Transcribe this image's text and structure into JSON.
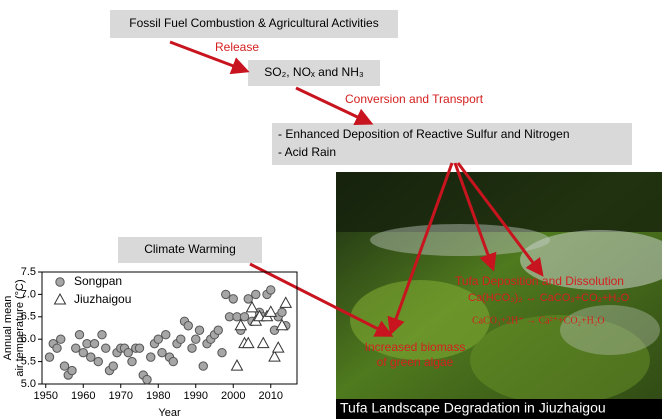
{
  "source_box": "Fossil Fuel Combustion & Agricultural Activities",
  "emission_box": "SO₂, NOₓ and NH₃",
  "deposition_box": [
    "- Enhanced Deposition of Reactive Sulfur and Nitrogen",
    "- Acid Rain"
  ],
  "climate_box": "Climate Warming",
  "arrow_labels": [
    "Release",
    "Conversion and Transport"
  ],
  "photo": {
    "labels": [
      "Tufa Deposition and Dissolution",
      "Ca(HCO₃)₂ ↔ CaCO₃+CO₂+H₂O",
      "CaCO₃+2H⁺ → Ca²⁺+CO₂+H₂O",
      "Increased biomass",
      "of green algae"
    ],
    "caption": "Tufa Landscape Degradation in Jiuzhaigou"
  },
  "chart_data": {
    "type": "scatter",
    "x_label": "Year",
    "y_label": [
      "Annual mean",
      "air temperature (°C)"
    ],
    "series": [
      {
        "name": "Songpan",
        "color": "#a6a6a6",
        "marker": "circle",
        "x": [
          1951,
          1952,
          1953,
          1954,
          1955,
          1956,
          1957,
          1958,
          1959,
          1960,
          1961,
          1962,
          1963,
          1964,
          1965,
          1966,
          1967,
          1968,
          1969,
          1970,
          1971,
          1972,
          1973,
          1974,
          1975,
          1976,
          1977,
          1978,
          1979,
          1980,
          1981,
          1982,
          1983,
          1984,
          1985,
          1986,
          1987,
          1988,
          1989,
          1990,
          1991,
          1992,
          1993,
          1994,
          1995,
          1996,
          1997,
          1998,
          1999,
          2000,
          2001,
          2002,
          2003,
          2004,
          2005,
          2006,
          2007,
          2008,
          2009,
          2010,
          2011,
          2012,
          2013,
          2014
        ],
        "values": [
          5.6,
          5.9,
          5.8,
          6.0,
          5.4,
          5.2,
          5.3,
          5.8,
          6.1,
          5.7,
          5.9,
          5.6,
          5.9,
          5.5,
          6.1,
          5.8,
          5.3,
          5.4,
          5.7,
          5.8,
          5.8,
          5.7,
          5.5,
          5.8,
          5.8,
          5.2,
          5.1,
          5.6,
          5.9,
          6.0,
          5.7,
          6.1,
          5.6,
          5.5,
          5.9,
          6.0,
          6.4,
          6.3,
          5.8,
          6.0,
          6.2,
          5.4,
          5.9,
          6.0,
          6.1,
          6.2,
          5.7,
          7.0,
          6.5,
          6.9,
          6.5,
          6.2,
          6.5,
          6.9,
          6.4,
          7.0,
          6.6,
          6.5,
          7.0,
          7.1,
          6.2,
          6.5,
          6.6,
          6.3
        ]
      },
      {
        "name": "Jiuzhaigou",
        "color": "#ffffff",
        "marker": "triangle",
        "x": [
          2001,
          2002,
          2003,
          2004,
          2005,
          2006,
          2007,
          2008,
          2009,
          2010,
          2011,
          2012,
          2013,
          2014
        ],
        "values": [
          5.4,
          6.3,
          5.9,
          5.9,
          6.7,
          6.4,
          6.5,
          5.9,
          6.5,
          6.6,
          5.6,
          5.8,
          6.3,
          6.8
        ]
      }
    ],
    "xlim": [
      1949,
      2017
    ],
    "xticks": [
      1950,
      1960,
      1970,
      1980,
      1990,
      2000,
      2010
    ],
    "ylim": [
      5.0,
      7.5
    ],
    "yticks": [
      {
        "value": 5.0,
        "label": "5.0"
      },
      5.5,
      {
        "value": 6.0,
        "label": "6.0"
      },
      6.5,
      {
        "value": 7.0,
        "label": "7.0"
      },
      7.5
    ]
  }
}
